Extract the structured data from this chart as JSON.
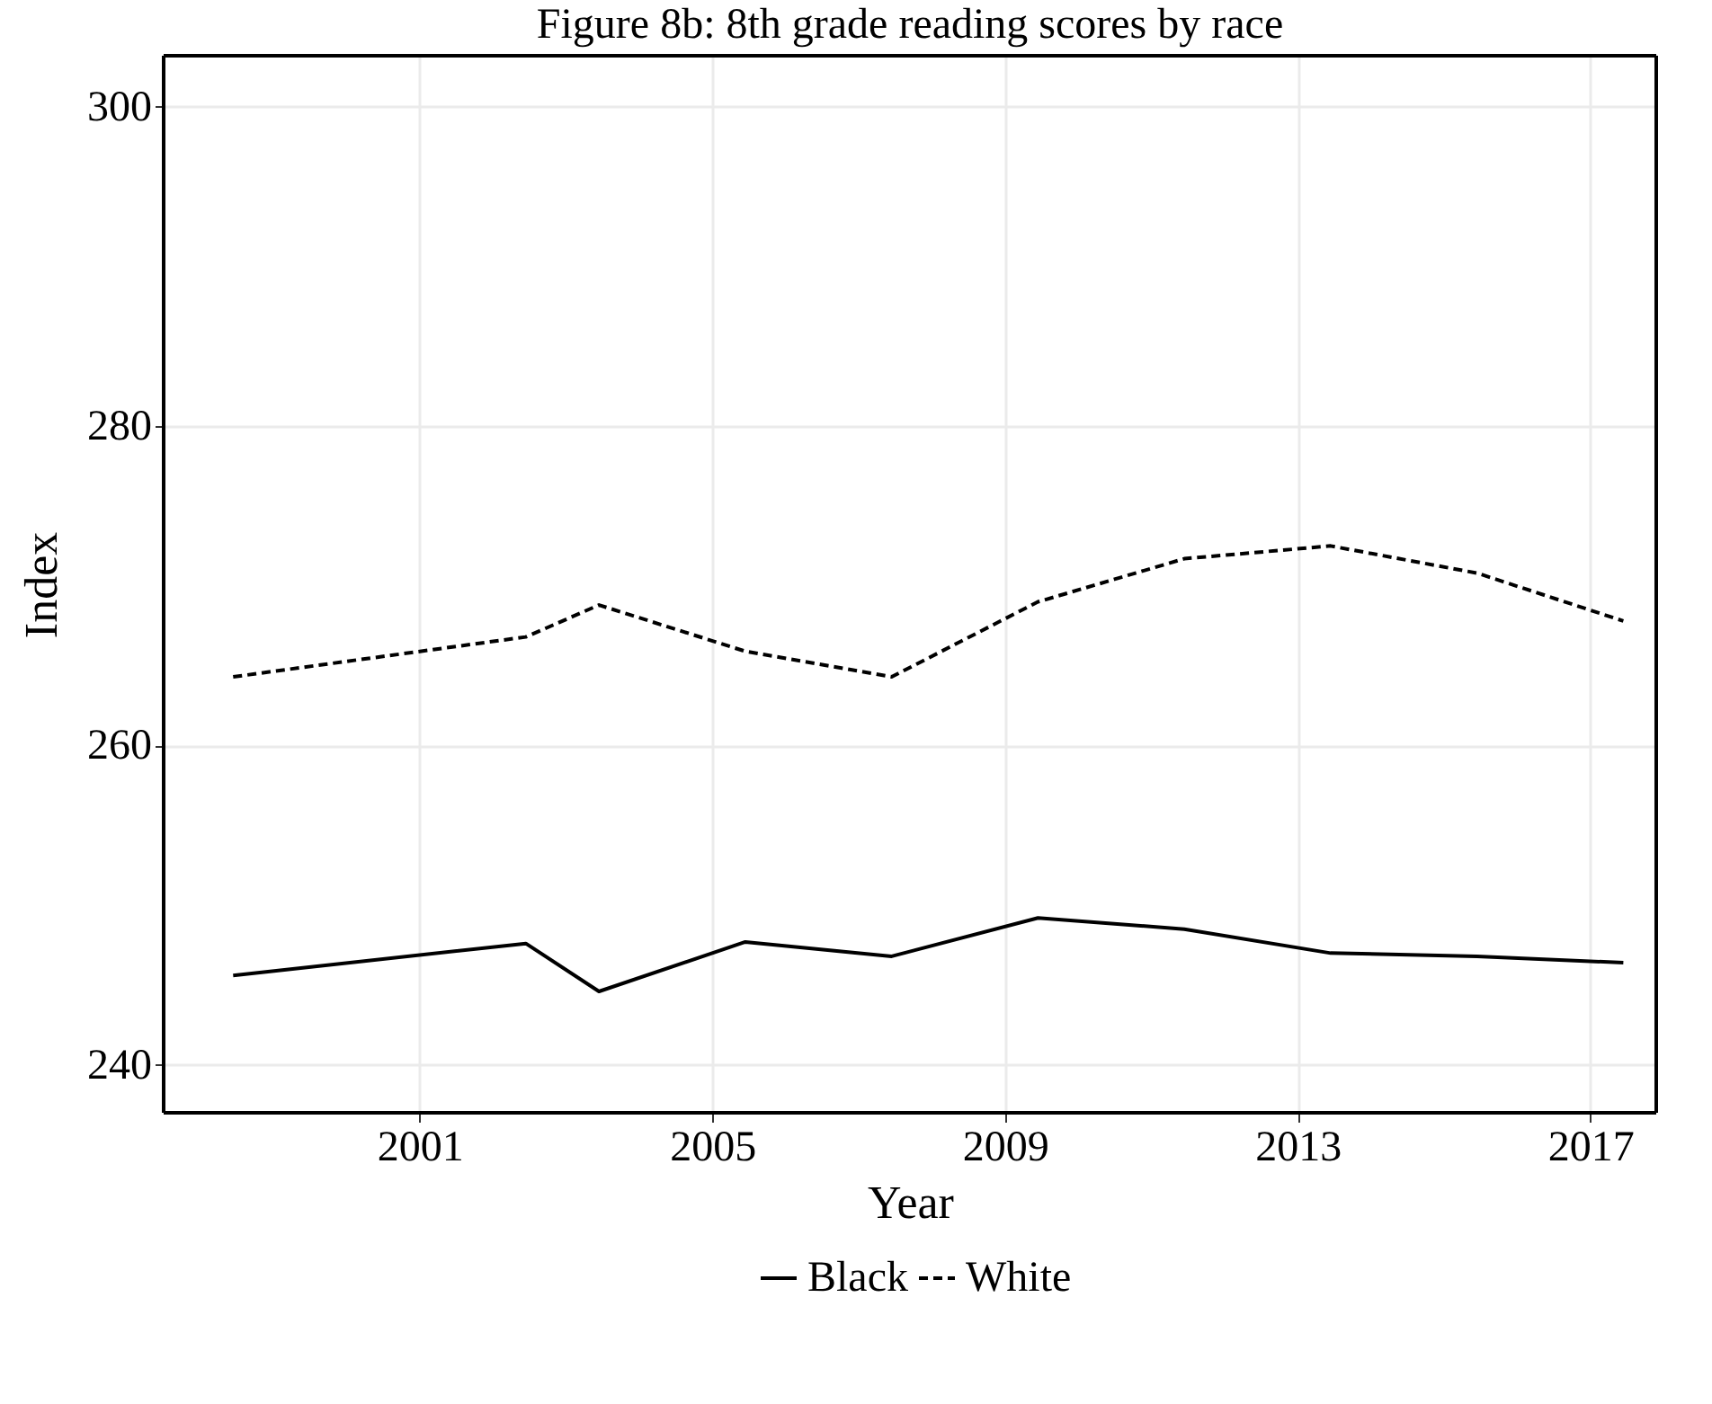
{
  "chart_data": {
    "type": "line",
    "title": "Figure 8b: 8th grade reading scores by race",
    "xlabel": "Year",
    "ylabel": "Index",
    "x": [
      1998.45,
      2002.45,
      2003.45,
      2005.45,
      2007.45,
      2009.45,
      2011.45,
      2013.45,
      2015.45,
      2017.45
    ],
    "series": [
      {
        "name": "Black",
        "color": "#000000",
        "line_style": "solid",
        "values": [
          245.6,
          247.6,
          244.6,
          247.7,
          246.8,
          249.2,
          248.5,
          247.0,
          246.8,
          246.4
        ]
      },
      {
        "name": "White",
        "color": "#000000",
        "line_style": "dashed",
        "values": [
          264.3,
          266.8,
          268.8,
          265.9,
          264.3,
          269.0,
          271.7,
          272.5,
          270.8,
          267.8
        ]
      }
    ],
    "xlim": [
      1997.5,
      2017.9
    ],
    "xticks": [
      2001,
      2005,
      2009,
      2013,
      2017
    ],
    "ylim": [
      237,
      303.2
    ],
    "yticks": [
      240,
      260,
      280,
      300
    ],
    "grid": true,
    "legend": "bottom",
    "marker": "none"
  }
}
